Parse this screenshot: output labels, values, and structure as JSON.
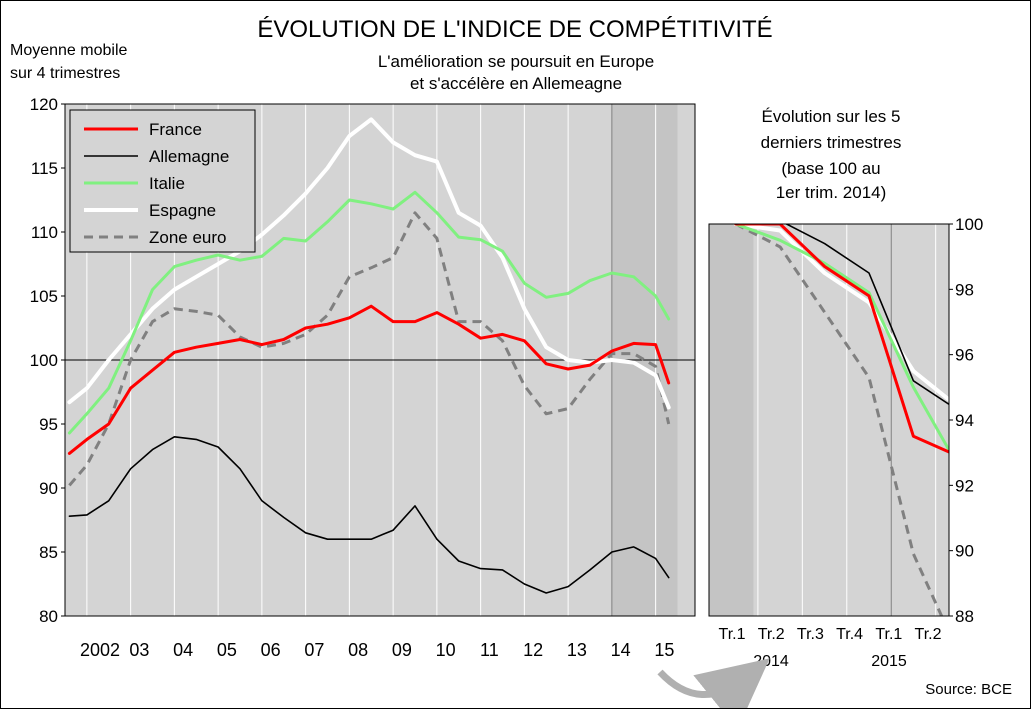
{
  "chart_data": [
    {
      "type": "line",
      "title": "ÉVOLUTION DE L'INDICE DE COMPÉTITIVITÉ",
      "subtitle": [
        "L'amélioration se poursuit en Europe",
        "et s'accélère en Allemeagne"
      ],
      "ylabel": [
        "Moyenne mobile",
        "sur 4 trimestres"
      ],
      "ylim": [
        80,
        120
      ],
      "xlim": [
        2001.5,
        2015.9
      ],
      "yticks": [
        80,
        85,
        90,
        95,
        100,
        105,
        110,
        115,
        120
      ],
      "yticklabels": [
        "80",
        "85",
        "90",
        "95",
        "100",
        "105",
        "110",
        "115",
        "120"
      ],
      "xticklabels": [
        {
          "x": 2002.3,
          "label": "2002"
        },
        {
          "x": 2003.2,
          "label": "03"
        },
        {
          "x": 2004.2,
          "label": "04"
        },
        {
          "x": 2005.2,
          "label": "05"
        },
        {
          "x": 2006.2,
          "label": "06"
        },
        {
          "x": 2007.2,
          "label": "07"
        },
        {
          "x": 2008.2,
          "label": "08"
        },
        {
          "x": 2009.2,
          "label": "09"
        },
        {
          "x": 2010.2,
          "label": "10"
        },
        {
          "x": 2011.2,
          "label": "11"
        },
        {
          "x": 2012.2,
          "label": "12"
        },
        {
          "x": 2013.2,
          "label": "13"
        },
        {
          "x": 2014.2,
          "label": "14"
        },
        {
          "x": 2015.2,
          "label": "15"
        }
      ],
      "grid": "vertical",
      "reference_line": 100,
      "highlight_range": [
        2014.0,
        2015.5
      ],
      "legend_position": "top-left",
      "series": [
        {
          "name": "France",
          "color": "#ff0000",
          "dash": "solid",
          "points": [
            [
              2001.6,
              92.7
            ],
            [
              2002.0,
              93.8
            ],
            [
              2002.5,
              95.0
            ],
            [
              2003.0,
              97.8
            ],
            [
              2003.5,
              99.2
            ],
            [
              2004.0,
              100.6
            ],
            [
              2004.5,
              101.0
            ],
            [
              2005.0,
              101.3
            ],
            [
              2005.5,
              101.6
            ],
            [
              2006.0,
              101.2
            ],
            [
              2006.5,
              101.6
            ],
            [
              2007.0,
              102.5
            ],
            [
              2007.5,
              102.8
            ],
            [
              2008.0,
              103.3
            ],
            [
              2008.5,
              104.2
            ],
            [
              2009.0,
              103.0
            ],
            [
              2009.5,
              103.0
            ],
            [
              2010.0,
              103.7
            ],
            [
              2010.5,
              102.8
            ],
            [
              2011.0,
              101.7
            ],
            [
              2011.5,
              102.0
            ],
            [
              2012.0,
              101.5
            ],
            [
              2012.5,
              99.7
            ],
            [
              2013.0,
              99.3
            ],
            [
              2013.5,
              99.6
            ],
            [
              2014.0,
              100.7
            ],
            [
              2014.5,
              101.3
            ],
            [
              2015.0,
              101.2
            ],
            [
              2015.3,
              98.2
            ]
          ]
        },
        {
          "name": "Allemagne",
          "color": "#000000",
          "dash": "solid",
          "points": [
            [
              2001.6,
              87.8
            ],
            [
              2002.0,
              87.9
            ],
            [
              2002.5,
              89.0
            ],
            [
              2003.0,
              91.5
            ],
            [
              2003.5,
              93.0
            ],
            [
              2004.0,
              94.0
            ],
            [
              2004.5,
              93.8
            ],
            [
              2005.0,
              93.2
            ],
            [
              2005.5,
              91.5
            ],
            [
              2006.0,
              89.0
            ],
            [
              2006.5,
              87.7
            ],
            [
              2007.0,
              86.5
            ],
            [
              2007.5,
              86.0
            ],
            [
              2008.0,
              86.0
            ],
            [
              2008.5,
              86.0
            ],
            [
              2009.0,
              86.7
            ],
            [
              2009.5,
              88.6
            ],
            [
              2010.0,
              86.0
            ],
            [
              2010.5,
              84.3
            ],
            [
              2011.0,
              83.7
            ],
            [
              2011.5,
              83.6
            ],
            [
              2012.0,
              82.5
            ],
            [
              2012.5,
              81.8
            ],
            [
              2013.0,
              82.3
            ],
            [
              2013.5,
              83.6
            ],
            [
              2014.0,
              85.0
            ],
            [
              2014.5,
              85.4
            ],
            [
              2015.0,
              84.5
            ],
            [
              2015.3,
              83.0
            ]
          ]
        },
        {
          "name": "Italie",
          "color": "#80f080",
          "dash": "solid",
          "points": [
            [
              2001.6,
              94.3
            ],
            [
              2002.0,
              95.8
            ],
            [
              2002.5,
              97.8
            ],
            [
              2003.0,
              101.5
            ],
            [
              2003.5,
              105.5
            ],
            [
              2004.0,
              107.3
            ],
            [
              2004.5,
              107.8
            ],
            [
              2005.0,
              108.2
            ],
            [
              2005.5,
              107.8
            ],
            [
              2006.0,
              108.1
            ],
            [
              2006.5,
              109.5
            ],
            [
              2007.0,
              109.3
            ],
            [
              2007.5,
              110.8
            ],
            [
              2008.0,
              112.5
            ],
            [
              2008.5,
              112.2
            ],
            [
              2009.0,
              111.8
            ],
            [
              2009.5,
              113.1
            ],
            [
              2010.0,
              111.5
            ],
            [
              2010.5,
              109.6
            ],
            [
              2011.0,
              109.4
            ],
            [
              2011.5,
              108.5
            ],
            [
              2012.0,
              106.0
            ],
            [
              2012.5,
              104.9
            ],
            [
              2013.0,
              105.2
            ],
            [
              2013.5,
              106.2
            ],
            [
              2014.0,
              106.8
            ],
            [
              2014.5,
              106.5
            ],
            [
              2015.0,
              105.0
            ],
            [
              2015.3,
              103.2
            ]
          ]
        },
        {
          "name": "Espagne",
          "color": "#ffffff",
          "dash": "solid",
          "points": [
            [
              2001.6,
              96.7
            ],
            [
              2002.0,
              97.8
            ],
            [
              2002.5,
              100.0
            ],
            [
              2003.0,
              102.0
            ],
            [
              2003.5,
              104.0
            ],
            [
              2004.0,
              105.5
            ],
            [
              2004.5,
              106.5
            ],
            [
              2005.0,
              107.5
            ],
            [
              2005.5,
              108.5
            ],
            [
              2006.0,
              109.8
            ],
            [
              2006.5,
              111.3
            ],
            [
              2007.0,
              113.0
            ],
            [
              2007.5,
              115.0
            ],
            [
              2008.0,
              117.5
            ],
            [
              2008.5,
              118.8
            ],
            [
              2009.0,
              117.0
            ],
            [
              2009.5,
              116.0
            ],
            [
              2010.0,
              115.5
            ],
            [
              2010.5,
              111.5
            ],
            [
              2011.0,
              110.5
            ],
            [
              2011.5,
              108.0
            ],
            [
              2012.0,
              104.0
            ],
            [
              2012.5,
              101.0
            ],
            [
              2013.0,
              100.0
            ],
            [
              2013.5,
              99.8
            ],
            [
              2014.0,
              100.0
            ],
            [
              2014.5,
              99.8
            ],
            [
              2015.0,
              98.8
            ],
            [
              2015.3,
              96.3
            ]
          ]
        },
        {
          "name": "Zone euro",
          "color": "#808080",
          "dash": "dashed",
          "points": [
            [
              2001.6,
              90.2
            ],
            [
              2002.0,
              91.8
            ],
            [
              2002.5,
              95.0
            ],
            [
              2003.0,
              100.0
            ],
            [
              2003.5,
              103.0
            ],
            [
              2004.0,
              104.0
            ],
            [
              2004.5,
              103.8
            ],
            [
              2005.0,
              103.5
            ],
            [
              2005.5,
              101.8
            ],
            [
              2006.0,
              101.0
            ],
            [
              2006.5,
              101.3
            ],
            [
              2007.0,
              102.0
            ],
            [
              2007.5,
              103.5
            ],
            [
              2008.0,
              106.5
            ],
            [
              2008.5,
              107.2
            ],
            [
              2009.0,
              108.0
            ],
            [
              2009.5,
              111.5
            ],
            [
              2010.0,
              109.5
            ],
            [
              2010.5,
              103.0
            ],
            [
              2011.0,
              103.0
            ],
            [
              2011.5,
              101.5
            ],
            [
              2012.0,
              98.0
            ],
            [
              2012.5,
              95.8
            ],
            [
              2013.0,
              96.2
            ],
            [
              2013.5,
              98.5
            ],
            [
              2014.0,
              100.5
            ],
            [
              2014.5,
              100.5
            ],
            [
              2015.0,
              99.5
            ],
            [
              2015.3,
              95.0
            ]
          ]
        }
      ]
    },
    {
      "type": "line",
      "title": [
        "Évolution sur les 5",
        "derniers trimestres",
        "(base 100 au",
        "1er trim. 2014)"
      ],
      "ylim": [
        88,
        100
      ],
      "xlim": [
        0,
        5.4
      ],
      "yticks": [
        88,
        90,
        92,
        94,
        96,
        98,
        100
      ],
      "yticklabels": [
        "88",
        "90",
        "92",
        "94",
        "96",
        "98",
        "100"
      ],
      "xticklabels": [
        {
          "x": 0.6,
          "label": "Tr.1"
        },
        {
          "x": 1.6,
          "label": "Tr.2"
        },
        {
          "x": 2.6,
          "label": "Tr.3"
        },
        {
          "x": 3.6,
          "label": "Tr.4"
        },
        {
          "x": 4.6,
          "label": "Tr.1"
        },
        {
          "x": 5.6,
          "label": "Tr.2"
        }
      ],
      "year_labels": [
        {
          "x": 1.6,
          "label": "2014"
        },
        {
          "x": 4.6,
          "label": "2015"
        }
      ],
      "grid": "vertical",
      "highlight_range": [
        0,
        1.0
      ],
      "source": "Source: BCE",
      "series": [
        {
          "name": "France",
          "color": "#ff0000",
          "dash": "solid",
          "points": [
            [
              0.6,
              100.0
            ],
            [
              1.6,
              100.0
            ],
            [
              2.6,
              98.7
            ],
            [
              3.6,
              97.8
            ],
            [
              4.6,
              93.5
            ],
            [
              5.6,
              92.9
            ]
          ]
        },
        {
          "name": "Allemagne",
          "color": "#000000",
          "dash": "solid",
          "points": [
            [
              0.6,
              100.0
            ],
            [
              1.6,
              100.1
            ],
            [
              2.6,
              99.4
            ],
            [
              3.6,
              98.5
            ],
            [
              4.6,
              95.2
            ],
            [
              5.6,
              94.3
            ]
          ]
        },
        {
          "name": "Italie",
          "color": "#80f080",
          "dash": "solid",
          "points": [
            [
              0.6,
              100.0
            ],
            [
              1.6,
              99.5
            ],
            [
              2.6,
              98.8
            ],
            [
              3.6,
              97.9
            ],
            [
              4.6,
              95.0
            ],
            [
              5.6,
              92.6
            ]
          ]
        },
        {
          "name": "Espagne",
          "color": "#ffffff",
          "dash": "solid",
          "points": [
            [
              0.6,
              100.0
            ],
            [
              1.6,
              99.8
            ],
            [
              2.6,
              98.5
            ],
            [
              3.6,
              97.6
            ],
            [
              4.6,
              95.5
            ],
            [
              5.6,
              94.4
            ]
          ]
        },
        {
          "name": "Zone euro",
          "color": "#808080",
          "dash": "dashed",
          "points": [
            [
              0.6,
              100.0
            ],
            [
              1.6,
              99.3
            ],
            [
              2.6,
              97.3
            ],
            [
              3.6,
              95.3
            ],
            [
              4.6,
              89.9
            ],
            [
              5.6,
              86.9
            ]
          ]
        }
      ]
    }
  ]
}
